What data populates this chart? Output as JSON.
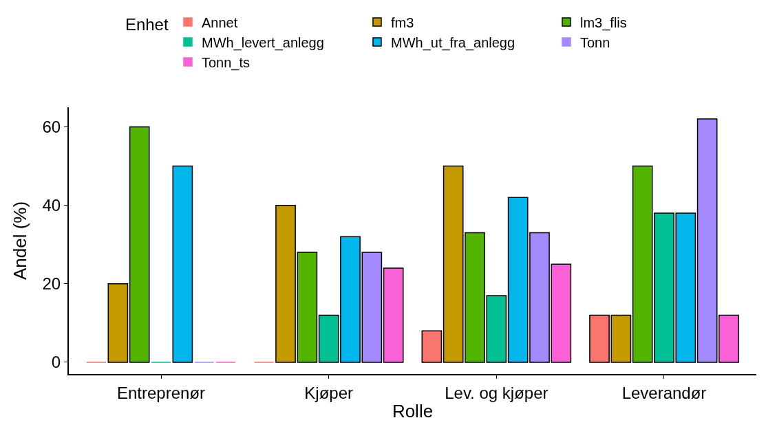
{
  "chart_data": {
    "type": "bar",
    "xlabel": "Rolle",
    "ylabel": "Andel (%)",
    "legend_title": "Enhet",
    "categories": [
      "Entreprenør",
      "Kjøper",
      "Lev. og kjøper",
      "Leverandør"
    ],
    "series": [
      {
        "name": "Annet",
        "color": "#f8766d",
        "values": [
          0,
          0,
          8,
          12
        ]
      },
      {
        "name": "fm3",
        "color": "#c49a00",
        "values": [
          20,
          40,
          50,
          12
        ]
      },
      {
        "name": "lm3_flis",
        "color": "#53b400",
        "values": [
          60,
          28,
          33,
          50
        ]
      },
      {
        "name": "MWh_levert_anlegg",
        "color": "#00c094",
        "values": [
          0,
          12,
          17,
          38
        ]
      },
      {
        "name": "MWh_ut_fra_anlegg",
        "color": "#00b6eb",
        "values": [
          50,
          32,
          42,
          38
        ]
      },
      {
        "name": "Tonn",
        "color": "#a58aff",
        "values": [
          0,
          28,
          33,
          62
        ]
      },
      {
        "name": "Tonn_ts",
        "color": "#fb61d7",
        "values": [
          0,
          24,
          25,
          12
        ]
      }
    ],
    "ylim": [
      -3,
      65
    ],
    "yticks": [
      0,
      20,
      40,
      60
    ],
    "legend": "top"
  }
}
